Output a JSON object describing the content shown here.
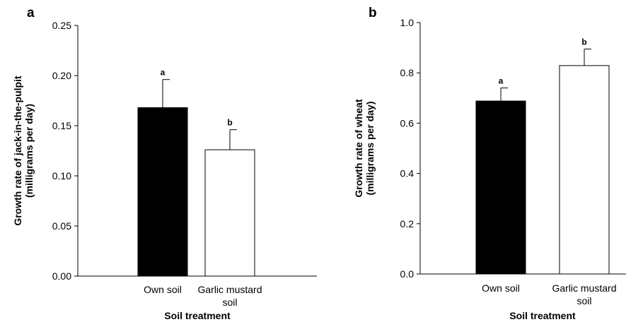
{
  "chart_data": [
    {
      "panel": "a",
      "type": "bar",
      "categories": [
        [
          "Own soil"
        ],
        [
          "Garlic mustard",
          "soil"
        ]
      ],
      "values": [
        0.168,
        0.126
      ],
      "errors": [
        0.028,
        0.02
      ],
      "significance": [
        "a",
        "b"
      ],
      "bar_colors": [
        "#000000",
        "#ffffff"
      ],
      "xlabel": "Soil treatment",
      "ylabel": [
        "Growth rate of jack-in-the-pulpit",
        "(milligrams per day)"
      ],
      "ylim": [
        0,
        0.25
      ],
      "yticks": [
        "0.00",
        "0.05",
        "0.10",
        "0.15",
        "0.20",
        "0.25"
      ],
      "ytick_values": [
        0,
        0.05,
        0.1,
        0.15,
        0.2,
        0.25
      ],
      "grid": false
    },
    {
      "panel": "b",
      "type": "bar",
      "categories": [
        [
          "Own soil"
        ],
        [
          "Garlic mustard",
          "soil"
        ]
      ],
      "values": [
        0.688,
        0.829
      ],
      "errors": [
        0.052,
        0.066
      ],
      "significance": [
        "a",
        "b"
      ],
      "bar_colors": [
        "#000000",
        "#ffffff"
      ],
      "xlabel": "Soil treatment",
      "ylabel": [
        "Growth rate of wheat",
        "(milligrams per day)"
      ],
      "ylim": [
        0,
        1.0
      ],
      "yticks": [
        "0.0",
        "0.2",
        "0.4",
        "0.6",
        "0.8",
        "1.0"
      ],
      "ytick_values": [
        0,
        0.2,
        0.4,
        0.6,
        0.8,
        1.0
      ],
      "grid": false
    }
  ]
}
